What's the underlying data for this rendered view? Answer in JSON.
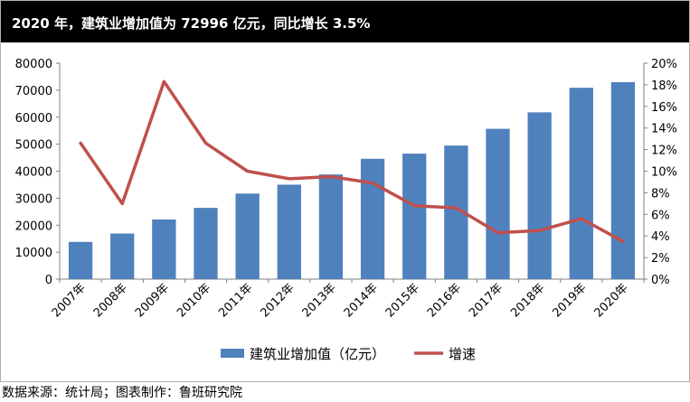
{
  "title": "2020 年，建筑业增加值为 72996 亿元，同比增长 3.5%",
  "source": "数据来源：统计局；图表制作：鲁班研究院",
  "chart_data": {
    "type": "bar",
    "categories": [
      "2007年",
      "2008年",
      "2009年",
      "2010年",
      "2011年",
      "2012年",
      "2013年",
      "2014年",
      "2015年",
      "2016年",
      "2017年",
      "2018年",
      "2019年",
      "2020年"
    ],
    "series": [
      {
        "name": "建筑业增加值（亿元）",
        "type": "bar",
        "axis": "left",
        "color": "#4f81bd",
        "values": [
          13800,
          16900,
          22100,
          26400,
          31700,
          35000,
          38800,
          44600,
          46500,
          49500,
          55700,
          61800,
          70900,
          72996
        ]
      },
      {
        "name": "增速",
        "type": "line",
        "axis": "right",
        "color": "#c0504d",
        "values": [
          12.6,
          7.0,
          18.3,
          12.6,
          10.0,
          9.3,
          9.5,
          8.9,
          6.8,
          6.6,
          4.3,
          4.5,
          5.6,
          3.5
        ]
      }
    ],
    "y_left": {
      "ylim": [
        0,
        80000
      ],
      "ticks": [
        "0",
        "10000",
        "20000",
        "30000",
        "40000",
        "50000",
        "60000",
        "70000",
        "80000"
      ]
    },
    "y_right": {
      "ylim": [
        0,
        20
      ],
      "ticks": [
        "0%",
        "2%",
        "4%",
        "6%",
        "8%",
        "10%",
        "12%",
        "14%",
        "16%",
        "18%",
        "20%"
      ]
    },
    "grid": false,
    "legend_position": "bottom"
  }
}
